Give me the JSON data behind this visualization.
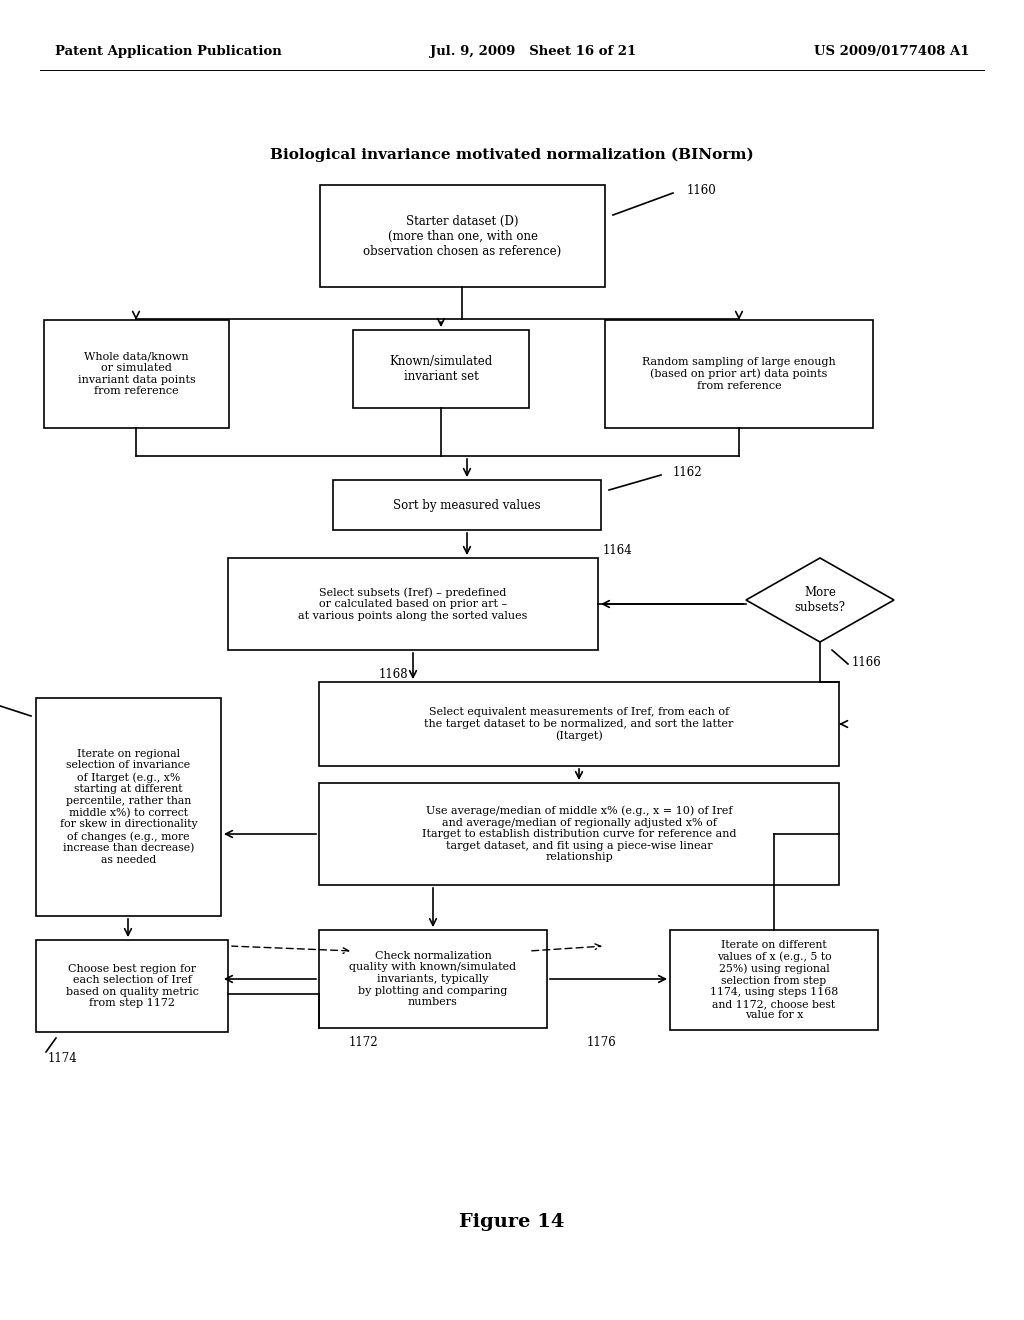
{
  "background": "#ffffff",
  "header_left": "Patent Application Publication",
  "header_center": "Jul. 9, 2009   Sheet 16 of 21",
  "header_right": "US 2009/0177408 A1",
  "figure_caption": "Figure 14",
  "diagram_title": "Biological invariance motivated normalization (BINorm)"
}
